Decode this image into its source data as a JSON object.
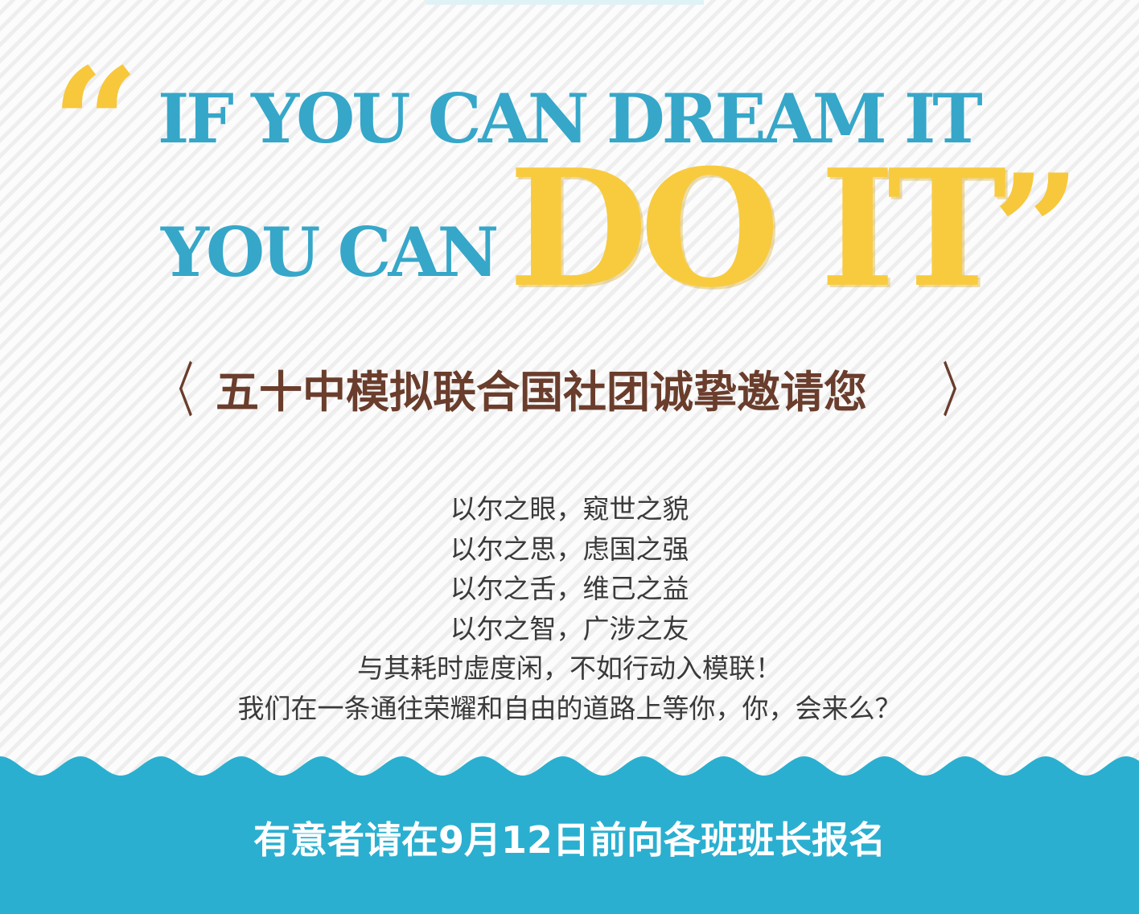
{
  "quotes": {
    "open": "“",
    "close": "”"
  },
  "headline": {
    "line1": "IF YOU CAN DREAM IT",
    "line2": "YOU CAN",
    "emphasis": "DO IT"
  },
  "invitation": {
    "bracket_left": "〈",
    "title": "五十中模拟联合国社团诚挚邀请您",
    "bracket_right": "〉"
  },
  "poem": {
    "lines": [
      "以尔之眼，窥世之貌",
      "以尔之思，虑国之强",
      "以尔之舌，维己之益",
      "以尔之智，广涉之友",
      "与其耗时虚度闲，不如行动入模联！",
      "我们在一条通往荣耀和自由的道路上等你，你，会来么？"
    ]
  },
  "footer": {
    "text": "有意者请在9月12日前向各班班长报名"
  },
  "colors": {
    "headline_blue": "#36a7c9",
    "accent_yellow": "#f8cb3f",
    "title_brown": "#6a3d2c",
    "footer_blue": "#2aafd0"
  }
}
